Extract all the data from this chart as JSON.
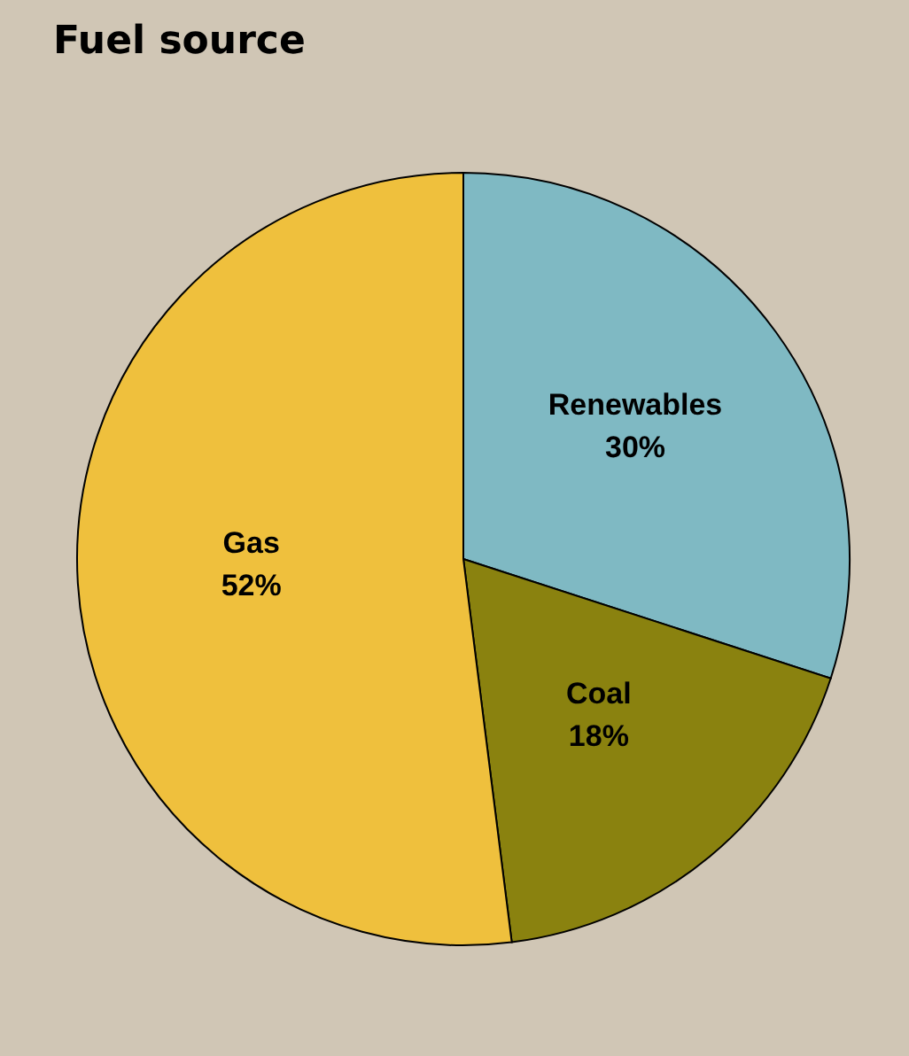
{
  "chart_data": {
    "type": "pie",
    "title": "Fuel source",
    "categories": [
      "Renewables",
      "Coal",
      "Gas"
    ],
    "values": [
      30,
      18,
      52
    ],
    "colors": [
      "#7fb9c3",
      "#8a820f",
      "#efc03d"
    ],
    "value_labels": [
      "30%",
      "18%",
      "52%"
    ],
    "legend": false
  }
}
